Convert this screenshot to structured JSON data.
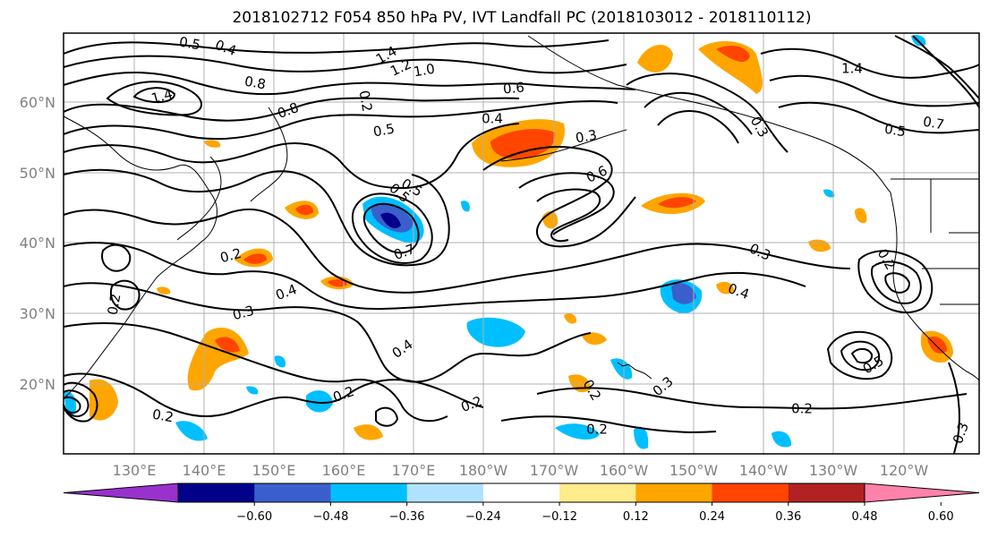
{
  "title": "2018102712 F054 850 hPa PV, IVT Landfall PC (2018103012 - 2018110112)",
  "lat_labels": [
    "20°N",
    "30°N",
    "40°N",
    "50°N",
    "60°N"
  ],
  "lon_labels": [
    "130°E",
    "140°E",
    "150°E",
    "160°E",
    "170°E",
    "180°W",
    "170°W",
    "160°W",
    "150°W",
    "140°W",
    "130°W",
    "120°W"
  ],
  "colorbar": {
    "colors": [
      "#9932CC",
      "#00008B",
      "#3A5FCD",
      "#00BFFF",
      "#B0E2FF",
      "#FFFFFF",
      "#FFEC8B",
      "#FFA500",
      "#FF4500",
      "#B22222",
      "#FF82AB"
    ],
    "tick_labels": [
      "-0.60",
      "-0.48",
      "-0.36",
      "-0.24",
      "-0.12",
      "0.12",
      "0.24",
      "0.36",
      "0.48",
      "0.60"
    ]
  },
  "contour_labels": [
    "0.5",
    "0.4",
    "1.4",
    "1.2",
    "1.0",
    "0.8",
    "1.4",
    "0.8",
    "0.6",
    "0.4",
    "0.3",
    "0.5",
    "0.5",
    "0.7",
    "0.4",
    "0.3",
    "0.2",
    "0.2",
    "0.4",
    "0.2",
    "0.3",
    "0.6",
    "0.3",
    "0.5",
    "0.5",
    "0.4",
    "1.4",
    "0.7",
    "0.5",
    "0.3",
    "0.2",
    "0.2",
    "0.2",
    "0.2",
    "0.2",
    "0.2",
    "0.3",
    "0.2"
  ]
}
